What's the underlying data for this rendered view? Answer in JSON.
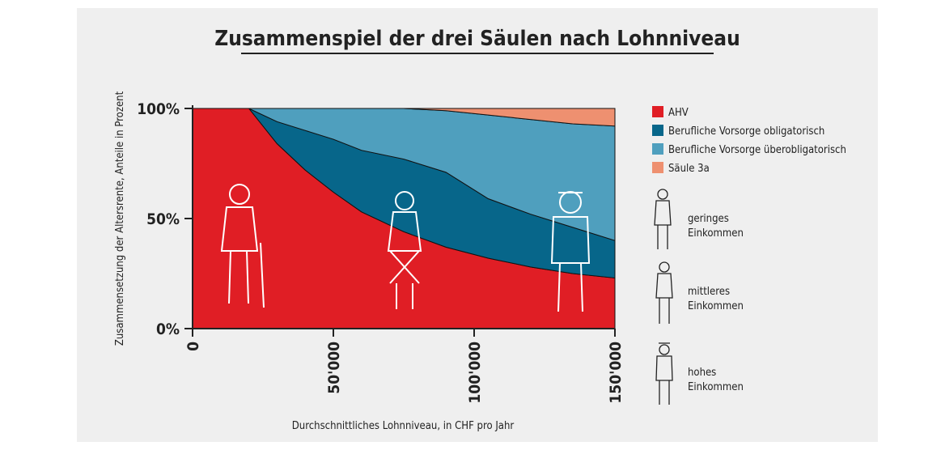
{
  "chart_data": {
    "type": "stacked-area",
    "title": "Zusammenspiel der drei Säulen nach Lohnniveau",
    "x_label": "Durchschnittliches Lohnniveau, in CHF pro Jahr",
    "y_label": "Zusammensetzung der Altersrente, Anteile in Prozent",
    "x": [
      0,
      20000,
      30000,
      40000,
      50000,
      60000,
      75000,
      90000,
      105000,
      120000,
      135000,
      150000
    ],
    "series": [
      {
        "name": "AHV",
        "color": "#e01e25",
        "values": [
          100,
          100,
          84,
          72,
          62,
          53,
          44,
          37,
          32,
          28,
          25,
          23
        ]
      },
      {
        "name": "Berufliche Vorsorge obligatorisch",
        "color": "#07668a",
        "values": [
          0,
          0,
          10,
          18,
          24,
          28,
          33,
          34,
          27,
          24,
          21,
          17
        ]
      },
      {
        "name": "Berufliche Vorsorge überobligatorisch",
        "color": "#4f9fbe",
        "values": [
          0,
          0,
          6,
          10,
          14,
          19,
          23,
          28,
          38,
          43,
          47,
          52
        ]
      },
      {
        "name": "Säule 3a",
        "color": "#ee9070",
        "values": [
          0,
          0,
          0,
          0,
          0,
          0,
          0,
          1,
          3,
          5,
          7,
          8
        ]
      }
    ],
    "xlim": [
      0,
      150000
    ],
    "ylim": [
      0,
      100
    ],
    "xticks": [
      0,
      {
        "value": 50000,
        "label": "50'000"
      },
      {
        "value": 100000,
        "label": "100'000"
      },
      {
        "value": 150000,
        "label": "150'000"
      }
    ],
    "yticks": [
      {
        "value": 0,
        "label": "0%"
      },
      {
        "value": 50,
        "label": "50%"
      },
      {
        "value": 100,
        "label": "100%"
      }
    ],
    "legend_position": "right",
    "income_groups": [
      "geringes Einkommen",
      "mittleres Einkommen",
      "hohes Einkommen"
    ]
  }
}
